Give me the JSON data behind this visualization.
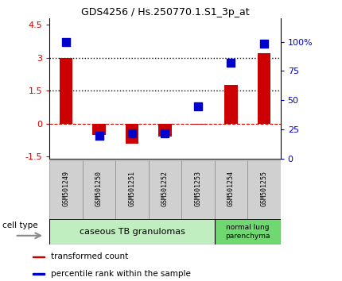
{
  "title": "GDS4256 / Hs.250770.1.S1_3p_at",
  "samples": [
    "GSM501249",
    "GSM501250",
    "GSM501251",
    "GSM501252",
    "GSM501253",
    "GSM501254",
    "GSM501255"
  ],
  "transformed_counts": [
    3.0,
    -0.5,
    -0.9,
    -0.6,
    -0.05,
    1.75,
    3.2
  ],
  "percentile_ranks": [
    100,
    20,
    22,
    22,
    45,
    82,
    98
  ],
  "ylim_left": [
    -1.6,
    4.8
  ],
  "ylim_right": [
    0,
    120
  ],
  "yticks_left": [
    -1.5,
    0,
    1.5,
    3,
    4.5
  ],
  "ytick_labels_left": [
    "-1.5",
    "0",
    "1.5",
    "3",
    "4.5"
  ],
  "yticks_right": [
    0,
    25,
    50,
    75,
    100
  ],
  "ytick_labels_right": [
    "0",
    "25",
    "50",
    "75",
    "100%"
  ],
  "hlines": [
    0.0,
    1.5,
    3.0
  ],
  "hline_styles": [
    "dashed",
    "dotted",
    "dotted"
  ],
  "hline_colors": [
    "#cc0000",
    "#000000",
    "#000000"
  ],
  "bar_color": "#cc0000",
  "dot_color": "#0000cc",
  "bar_width": 0.4,
  "dot_size": 50,
  "group1_indices": [
    0,
    1,
    2,
    3,
    4
  ],
  "group2_indices": [
    5,
    6
  ],
  "group1_label": "caseous TB granulomas",
  "group2_label": "normal lung\nparenchyma",
  "group1_color": "#c0eec0",
  "group2_color": "#70d870",
  "cell_type_label": "cell type",
  "legend_bar_label": "transformed count",
  "legend_dot_label": "percentile rank within the sample",
  "label_box_color": "#d0d0d0"
}
